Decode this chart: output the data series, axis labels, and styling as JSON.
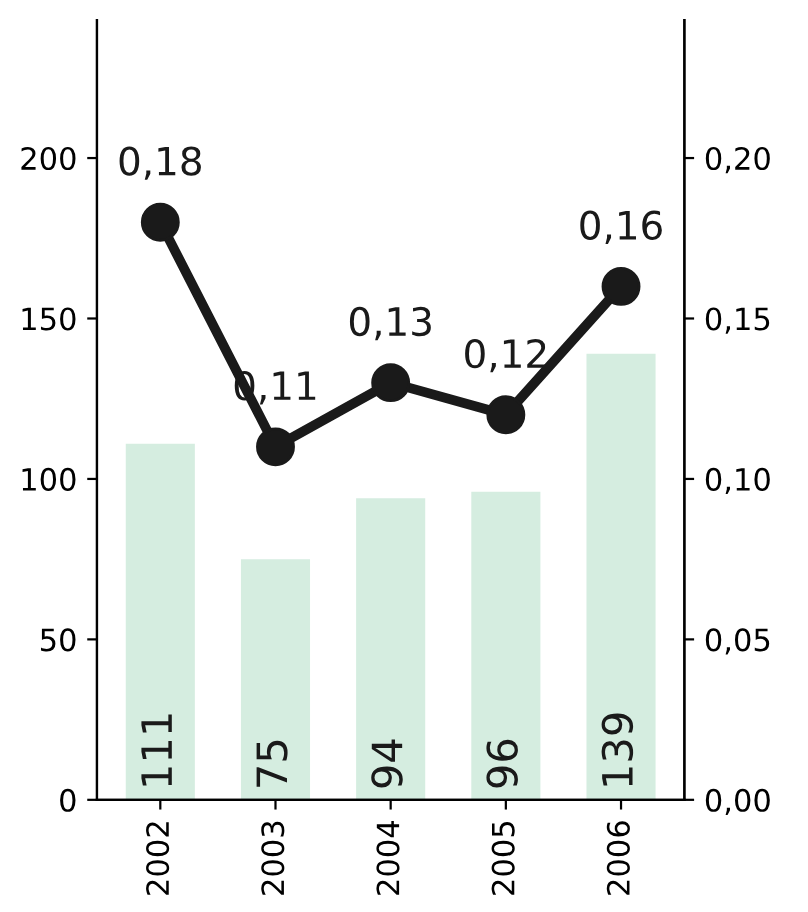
{
  "chart_data": {
    "type": "bar",
    "categories": [
      "2002",
      "2003",
      "2004",
      "2005",
      "2006"
    ],
    "series": [
      {
        "color": "#d5ede0",
        "values": [
          111,
          75,
          94,
          96,
          139
        ],
        "value_labels": [
          "111",
          "75",
          "94",
          "96",
          "139"
        ]
      },
      {
        "type": "line",
        "axis": "y2",
        "color": "#1a1a1a",
        "marker": "circle",
        "values": [
          0.18,
          0.11,
          0.13,
          0.12,
          0.16
        ],
        "value_labels": [
          "0,18",
          "0,11",
          "0,13",
          "0,12",
          "0,16"
        ]
      }
    ],
    "ylim": [
      0,
      243
    ],
    "yticks": [
      0,
      50,
      100,
      150,
      200
    ],
    "y2lim": [
      0,
      0.243
    ],
    "y2ticks": [
      {
        "value": 0,
        "label": "0,00"
      },
      {
        "value": 0.05,
        "label": "0,05"
      },
      {
        "value": 0.1,
        "label": "0,10"
      },
      {
        "value": 0.15,
        "label": "0,15"
      },
      {
        "value": 0.2,
        "label": "0,20"
      }
    ],
    "grid": false
  }
}
